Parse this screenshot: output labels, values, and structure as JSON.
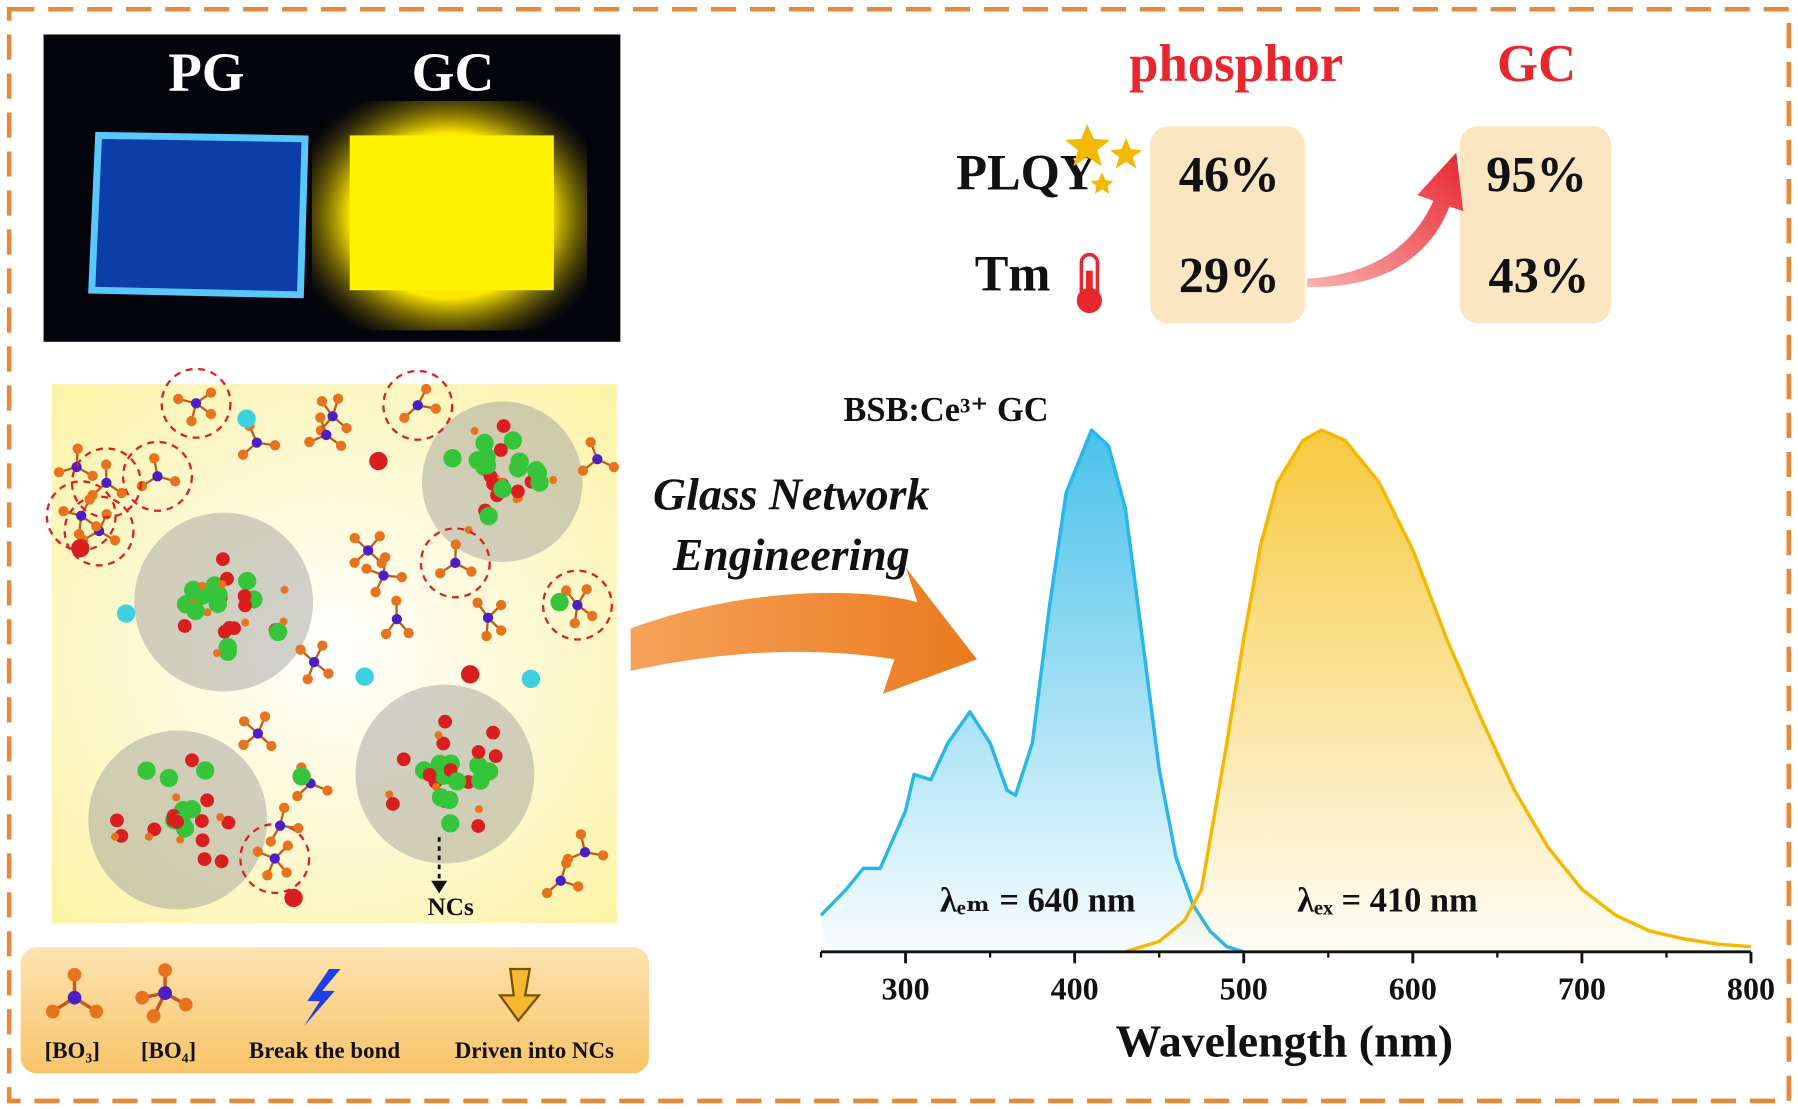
{
  "photo": {
    "labels": [
      "PG",
      "GC"
    ]
  },
  "comparison": {
    "columns": [
      "phosphor",
      "GC"
    ],
    "rows": [
      {
        "label": "PLQY",
        "values": [
          "46%",
          "95%"
        ]
      },
      {
        "label": "Tm",
        "values": [
          "29%",
          "43%"
        ]
      }
    ]
  },
  "process": {
    "lines": [
      "Glass Network",
      "Engineering"
    ]
  },
  "structure": {
    "annotation": "NCs",
    "legend": [
      "[BO₃]",
      "[BO₄]",
      "Break the bond",
      "Driven into NCs"
    ]
  },
  "chart_data": {
    "type": "line",
    "title": "BSB:Ce³⁺ GC",
    "x_label": "Wavelength (nm)",
    "xlim": [
      250,
      800
    ],
    "xticks": [
      300,
      400,
      500,
      600,
      700,
      800
    ],
    "ylim": [
      0,
      1
    ],
    "series": [
      {
        "color": "#29b6e8",
        "annotation": "λₑₘ = 640 nm",
        "x": [
          250,
          265,
          275,
          285,
          300,
          305,
          315,
          325,
          338,
          350,
          360,
          365,
          375,
          385,
          395,
          410,
          420,
          430,
          440,
          450,
          460,
          470,
          480,
          490,
          500
        ],
        "values": [
          0.07,
          0.12,
          0.16,
          0.16,
          0.27,
          0.34,
          0.33,
          0.4,
          0.46,
          0.4,
          0.31,
          0.3,
          0.4,
          0.66,
          0.88,
          1.0,
          0.97,
          0.85,
          0.6,
          0.35,
          0.18,
          0.09,
          0.04,
          0.01,
          0
        ]
      },
      {
        "color": "#f5b800",
        "annotation": "λₑₓ = 410 nm",
        "x": [
          430,
          450,
          465,
          475,
          490,
          500,
          510,
          520,
          535,
          546,
          560,
          580,
          600,
          620,
          640,
          660,
          680,
          700,
          720,
          740,
          760,
          780,
          800
        ],
        "values": [
          0,
          0.02,
          0.06,
          0.12,
          0.4,
          0.6,
          0.78,
          0.9,
          0.98,
          1.0,
          0.98,
          0.9,
          0.77,
          0.6,
          0.45,
          0.31,
          0.2,
          0.12,
          0.07,
          0.04,
          0.025,
          0.015,
          0.01
        ]
      }
    ]
  }
}
